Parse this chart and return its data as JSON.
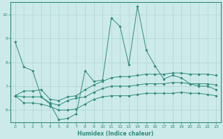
{
  "xlabel": "Humidex (Indice chaleur)",
  "x": [
    0,
    1,
    2,
    3,
    4,
    5,
    6,
    7,
    8,
    9,
    10,
    11,
    12,
    13,
    14,
    15,
    16,
    17,
    18,
    19,
    20,
    21,
    22,
    23
  ],
  "line1": [
    8.85,
    7.8,
    7.65,
    6.55,
    6.25,
    5.6,
    5.65,
    5.85,
    7.65,
    7.2,
    7.25,
    9.85,
    9.5,
    7.9,
    10.35,
    8.5,
    7.85,
    7.3,
    7.45,
    7.35,
    7.1,
    7.0,
    7.0,
    6.85
  ],
  "line2": [
    6.6,
    6.55,
    6.55,
    6.55,
    6.3,
    6.2,
    6.4,
    6.5,
    6.55,
    6.75,
    6.9,
    7.0,
    7.0,
    7.0,
    7.05,
    7.1,
    7.1,
    7.1,
    7.15,
    7.15,
    7.1,
    7.1,
    7.1,
    7.05
  ],
  "line3": [
    6.6,
    6.3,
    6.3,
    6.25,
    6.15,
    6.0,
    6.0,
    6.05,
    6.25,
    6.45,
    6.55,
    6.6,
    6.6,
    6.6,
    6.65,
    6.7,
    6.7,
    6.7,
    6.7,
    6.75,
    6.7,
    6.7,
    6.65,
    6.6
  ],
  "line4": [
    6.6,
    6.8,
    6.8,
    6.85,
    6.45,
    6.4,
    6.55,
    6.6,
    6.85,
    7.05,
    7.2,
    7.35,
    7.4,
    7.4,
    7.45,
    7.5,
    7.5,
    7.5,
    7.55,
    7.55,
    7.5,
    7.5,
    7.5,
    7.45
  ],
  "line_color": "#2e8b7a",
  "bg_color": "#cdeaea",
  "grid_color": "#afd4d4",
  "ylim": [
    5.5,
    10.5
  ],
  "xlim": [
    -0.5,
    23.5
  ],
  "yticks": [
    6,
    7,
    8,
    9,
    10
  ],
  "xticks": [
    0,
    1,
    2,
    3,
    4,
    5,
    6,
    7,
    8,
    9,
    10,
    11,
    12,
    13,
    14,
    15,
    16,
    17,
    18,
    19,
    20,
    21,
    22,
    23
  ]
}
